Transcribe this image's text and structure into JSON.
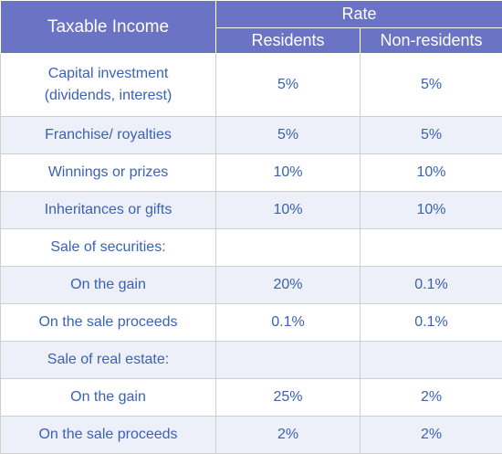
{
  "header": {
    "taxable_income": "Taxable Income",
    "rate": "Rate",
    "residents": "Residents",
    "non_residents": "Non-residents"
  },
  "rows": [
    {
      "line1": "Capital investment",
      "line2": "(dividends, interest)",
      "residents": "5%",
      "non_residents": "5%"
    },
    {
      "line1": "Franchise/ royalties",
      "residents": "5%",
      "non_residents": "5%"
    },
    {
      "line1": "Winnings or prizes",
      "residents": "10%",
      "non_residents": "10%"
    },
    {
      "line1": "Inheritances or gifts",
      "residents": "10%",
      "non_residents": "10%"
    },
    {
      "line1": "Sale of securities:",
      "residents": "",
      "non_residents": ""
    },
    {
      "line1": "On the gain",
      "residents": "20%",
      "non_residents": "0.1%"
    },
    {
      "line1": "On the sale proceeds",
      "residents": "0.1%",
      "non_residents": "0.1%"
    },
    {
      "line1": "Sale of real estate:",
      "residents": "",
      "non_residents": ""
    },
    {
      "line1": "On the gain",
      "residents": "25%",
      "non_residents": "2%"
    },
    {
      "line1": "On the sale proceeds",
      "residents": "2%",
      "non_residents": "2%"
    }
  ]
}
